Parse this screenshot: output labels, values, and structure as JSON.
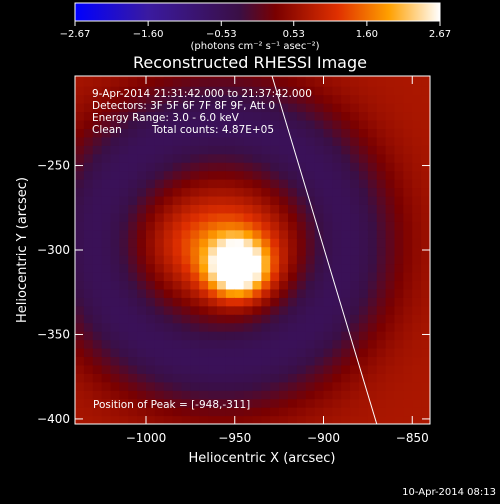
{
  "chart_data": {
    "type": "heatmap",
    "title": "Reconstructed RHESSI Image",
    "xlabel": "Heliocentric X (arcsec)",
    "ylabel": "Heliocentric Y (arcsec)",
    "xlim": [
      -1040,
      -840
    ],
    "ylim": [
      -403,
      -197
    ],
    "xticks": [
      -1000,
      -950,
      -900,
      -850
    ],
    "yticks": [
      -250,
      -300,
      -350,
      -400
    ],
    "xtick_labels": [
      "−1000",
      "−950",
      "−900",
      "−850"
    ],
    "ytick_labels": [
      "−250",
      "−300",
      "−350",
      "−400"
    ],
    "colorbar": {
      "min": -2.67,
      "max": 2.67,
      "ticks": [
        -2.67,
        -1.6,
        -0.53,
        0.53,
        1.6,
        2.67
      ],
      "tick_labels": [
        "−2.67",
        "−1.60",
        "−0.53",
        "0.53",
        "1.60",
        "2.67"
      ],
      "label": "(photons cm⁻² s⁻¹ asec⁻²)",
      "colormap": "blue-purple-red-yellow-white"
    },
    "peak": {
      "x": -948,
      "y": -311,
      "value": 2.67
    },
    "sources": [
      {
        "x": -948,
        "y": -311,
        "sx": 12,
        "sy": 12,
        "amp": 2.67
      },
      {
        "x": -958,
        "y": -296,
        "sx": 26,
        "sy": 18,
        "amp": 0.9
      }
    ],
    "limb_line": [
      [
        -929,
        -197
      ],
      [
        -870,
        -403
      ]
    ],
    "annotations": {
      "time_range": "9-Apr-2014 21:31:42.000 to 21:37:42.000",
      "detectors": "Detectors: 3F 5F 6F 7F 8F 9F, Att 0",
      "energy_range": "Energy Range: 3.0 - 6.0 keV",
      "clean_label": "Clean",
      "total_counts": "Total counts: 4.87E+05",
      "peak_position": "Position of Peak = [-948,-311]"
    },
    "timestamp": "10-Apr-2014 08:13"
  }
}
